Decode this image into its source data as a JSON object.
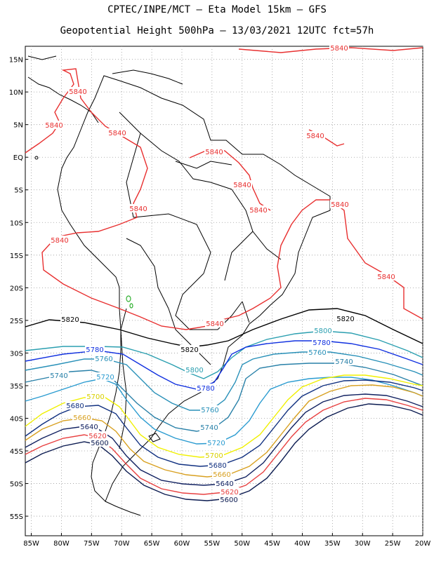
{
  "header": {
    "line1": "CPTEC/INPE/MCT —  Eta Model 15km — GFS",
    "line2": "Geopotential Height 500hPa — 13/03/2021 12UTC fct=57h"
  },
  "axes": {
    "lat_ticks": [
      "15N",
      "10N",
      "5N",
      "EQ",
      "5S",
      "10S",
      "15S",
      "20S",
      "25S",
      "30S",
      "35S",
      "40S",
      "45S",
      "50S",
      "55S"
    ],
    "lon_ticks": [
      "85W",
      "80W",
      "75W",
      "70W",
      "65W",
      "60W",
      "55W",
      "50W",
      "45W",
      "40W",
      "35W",
      "30W",
      "25W",
      "20W"
    ]
  },
  "contours": [
    {
      "level": "5840",
      "color": "#e83030"
    },
    {
      "level": "5820",
      "color": "#000000"
    },
    {
      "level": "5800",
      "color": "#2b9fb0"
    },
    {
      "level": "5780",
      "color": "#1030e0"
    },
    {
      "level": "5760",
      "color": "#2890b8"
    },
    {
      "level": "5740",
      "color": "#2880a8"
    },
    {
      "level": "5720",
      "color": "#2a9bd0"
    },
    {
      "level": "5700",
      "color": "#f0f000"
    },
    {
      "level": "5680",
      "color": "#103080"
    },
    {
      "level": "5660",
      "color": "#d8a020"
    },
    {
      "level": "5640",
      "color": "#102060"
    },
    {
      "level": "5620",
      "color": "#e84040"
    },
    {
      "level": "5600",
      "color": "#0a1a50"
    }
  ]
}
